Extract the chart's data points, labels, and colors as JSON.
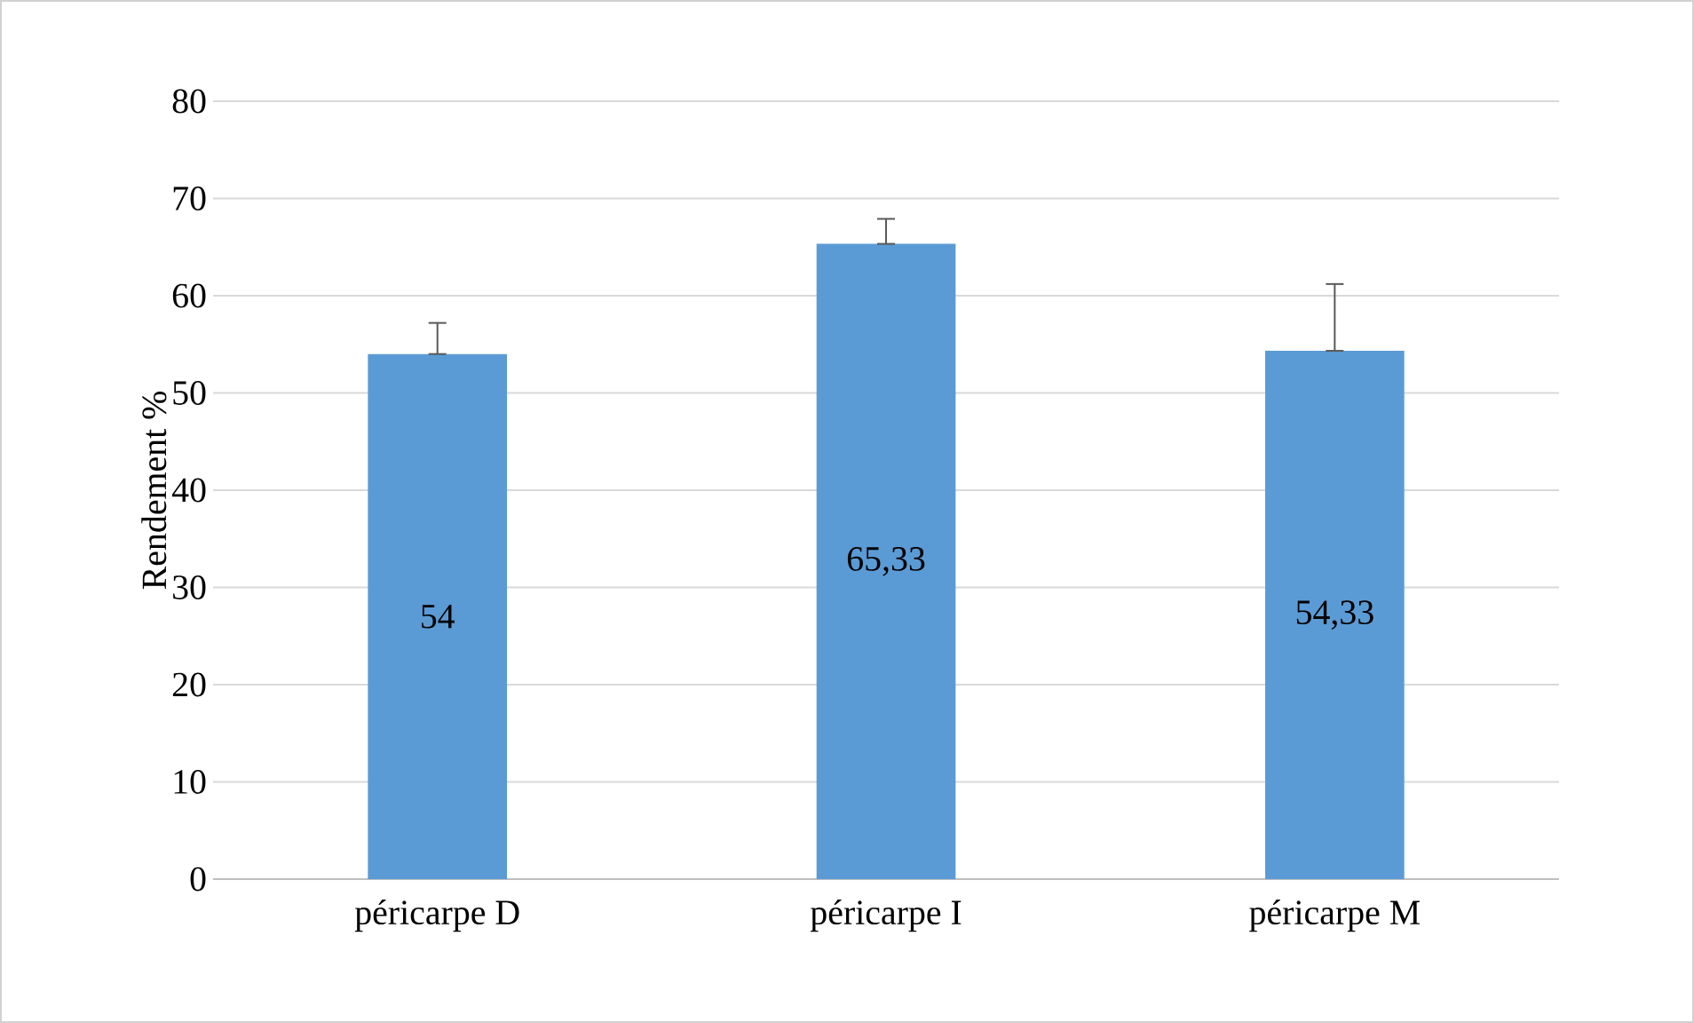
{
  "chart_data": {
    "type": "bar",
    "ylabel": "Rendement %",
    "categories": [
      "péricarpe D",
      "péricarpe I",
      "péricarpe M"
    ],
    "values": [
      54,
      65.33,
      54.33
    ],
    "value_labels": [
      "54",
      "65,33",
      "54,33"
    ],
    "errors": [
      [
        54,
        57.2
      ],
      [
        65.33,
        67.9
      ],
      [
        54.33,
        61.2
      ]
    ],
    "color": "#5b9bd5",
    "ylim": [
      0,
      80
    ],
    "yticks": [
      0,
      10,
      20,
      30,
      40,
      50,
      60,
      70,
      80
    ],
    "grid": "y"
  }
}
